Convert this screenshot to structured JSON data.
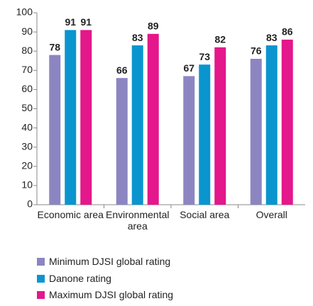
{
  "chart_data": {
    "type": "bar",
    "categories": [
      "Economic area",
      "Environmental area",
      "Social area",
      "Overall"
    ],
    "series": [
      {
        "name": "Minimum DJSI global rating",
        "color": "#8b86c1",
        "values": [
          78,
          66,
          67,
          76
        ]
      },
      {
        "name": "Danone rating",
        "color": "#0a95cf",
        "values": [
          91,
          83,
          73,
          83
        ]
      },
      {
        "name": "Maximum DJSI global rating",
        "color": "#e4178b",
        "values": [
          91,
          89,
          82,
          86
        ]
      }
    ],
    "ylim": [
      0,
      100
    ],
    "yticks": [
      0,
      10,
      20,
      30,
      40,
      50,
      60,
      70,
      80,
      90,
      100
    ],
    "legend": "bottom"
  }
}
